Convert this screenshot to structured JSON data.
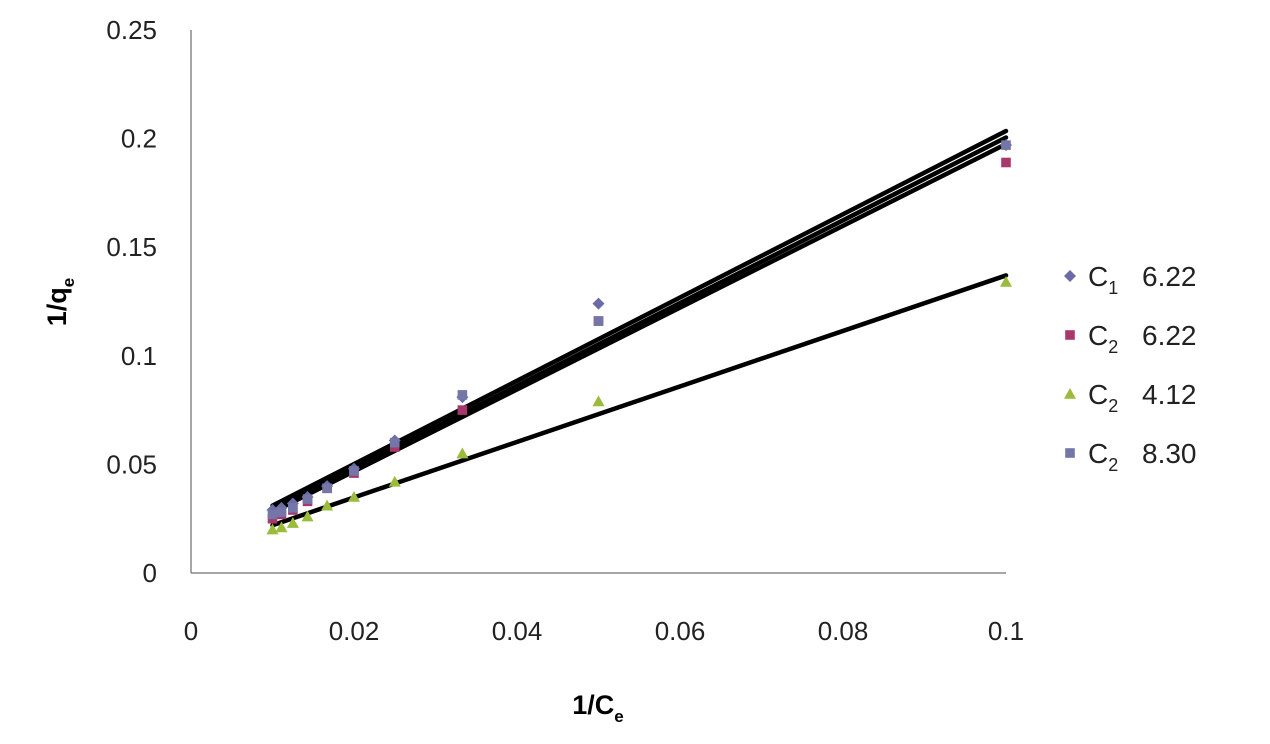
{
  "chart_data": {
    "type": "scatter",
    "title": "",
    "xlabel": {
      "main": "1/C",
      "sub": "e"
    },
    "ylabel": {
      "main": "1/q",
      "sub": "e"
    },
    "xlim": [
      0,
      0.1
    ],
    "ylim": [
      0,
      0.25
    ],
    "x_ticks": [
      "0",
      "0.02",
      "0.04",
      "0.06",
      "0.08",
      "0.1"
    ],
    "y_ticks": [
      "0",
      "0.05",
      "0.1",
      "0.15",
      "0.2",
      "0.25"
    ],
    "x_tick_values": [
      0,
      0.02,
      0.04,
      0.06,
      0.08,
      0.1
    ],
    "y_tick_values": [
      0,
      0.05,
      0.1,
      0.15,
      0.2,
      0.25
    ],
    "grid": false,
    "legend_position": "right",
    "series": [
      {
        "name_main": "C",
        "name_sub": "1",
        "name_value": "6.22",
        "marker": "diamond",
        "color": "#6B6BA6",
        "x": [
          0.01,
          0.0111,
          0.0125,
          0.0143,
          0.0167,
          0.02,
          0.025,
          0.0333,
          0.05,
          0.1
        ],
        "y": [
          0.029,
          0.03,
          0.032,
          0.035,
          0.04,
          0.048,
          0.061,
          0.081,
          0.124,
          0.197
        ],
        "fit": [
          [
            0.01,
            0.031
          ],
          [
            0.1,
            0.2035
          ]
        ]
      },
      {
        "name_main": "C",
        "name_sub": "2",
        "name_value": "6.22",
        "marker": "square",
        "color": "#A8386B",
        "x": [
          0.01,
          0.0111,
          0.0125,
          0.0143,
          0.0167,
          0.02,
          0.025,
          0.0333,
          0.05,
          0.1
        ],
        "y": [
          0.025,
          0.027,
          0.029,
          0.033,
          0.039,
          0.046,
          0.058,
          0.075,
          0.116,
          0.189
        ],
        "fit": [
          [
            0.01,
            0.028
          ],
          [
            0.1,
            0.1975
          ]
        ]
      },
      {
        "name_main": "C",
        "name_sub": "2",
        "name_value": "4.12",
        "marker": "triangle",
        "color": "#9BBB3B",
        "x": [
          0.01,
          0.0111,
          0.0125,
          0.0143,
          0.0167,
          0.02,
          0.025,
          0.0333,
          0.05,
          0.1
        ],
        "y": [
          0.02,
          0.021,
          0.023,
          0.026,
          0.031,
          0.035,
          0.042,
          0.055,
          0.079,
          0.134
        ],
        "fit": [
          [
            0.01,
            0.022
          ],
          [
            0.1,
            0.137
          ]
        ]
      },
      {
        "name_main": "C",
        "name_sub": "2",
        "name_value": "8.30",
        "marker": "square",
        "color": "#7476A8",
        "x": [
          0.01,
          0.0111,
          0.0125,
          0.0143,
          0.0167,
          0.02,
          0.025,
          0.0333,
          0.05,
          0.1
        ],
        "y": [
          0.027,
          0.028,
          0.03,
          0.034,
          0.039,
          0.047,
          0.06,
          0.082,
          0.116,
          0.197
        ],
        "fit": [
          [
            0.01,
            0.029
          ],
          [
            0.1,
            0.2005
          ]
        ]
      }
    ]
  }
}
